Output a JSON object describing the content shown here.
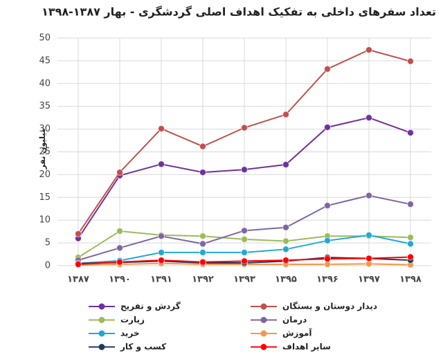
{
  "chart_data": {
    "type": "line",
    "title": "تعداد سفرهای داخلی به تفکیک اهداف اصلی گردشگری - بهار ۱۳۸۷-۱۳۹۸",
    "y_label": "میلیون نفر",
    "categories": [
      "۱۳۸۷",
      "۱۳۹۰",
      "۱۳۹۱",
      "۱۳۹۲",
      "۱۳۹۳",
      "۱۳۹۵",
      "۱۳۹۶",
      "۱۳۹۷",
      "۱۳۹۸"
    ],
    "ylim": [
      0,
      50
    ],
    "yticks": [
      0,
      5,
      10,
      15,
      20,
      25,
      30,
      35,
      40,
      45,
      50
    ],
    "grid": true,
    "legend": "bottom",
    "series": [
      {
        "name": "گردش و تفریح",
        "color": "#7030a0",
        "values": [
          6,
          19.8,
          22.3,
          20.5,
          21.1,
          22.2,
          30.4,
          32.5,
          29.2
        ]
      },
      {
        "name": "دیدار دوستان و بستگان",
        "color": "#c0504d",
        "values": [
          7,
          20.5,
          30.1,
          26.2,
          30.3,
          33.2,
          43.2,
          47.4,
          44.9
        ]
      },
      {
        "name": "زیارت",
        "color": "#9bbb59",
        "values": [
          1.8,
          7.6,
          6.7,
          6.5,
          5.8,
          5.4,
          6.5,
          6.5,
          6.2
        ]
      },
      {
        "name": "درمان",
        "color": "#8064a2",
        "values": [
          1.2,
          3.9,
          6.5,
          4.8,
          7.7,
          8.4,
          13.2,
          15.4,
          13.5
        ]
      },
      {
        "name": "خرید",
        "color": "#1fa9d8",
        "values": [
          0.5,
          1.1,
          2.9,
          2.9,
          2.9,
          3.6,
          5.5,
          6.7,
          4.8
        ]
      },
      {
        "name": "آموزش",
        "color": "#f79646",
        "values": [
          0.2,
          0.3,
          0.5,
          0.3,
          0.3,
          0.3,
          0.3,
          0.4,
          0.2
        ]
      },
      {
        "name": "کسب و کار",
        "color": "#1f3864",
        "values": [
          0.5,
          0.7,
          1.0,
          0.6,
          0.6,
          1.0,
          1.8,
          1.6,
          1.2
        ]
      },
      {
        "name": "سایر اهداف",
        "color": "#ff0000",
        "values": [
          0.3,
          0.8,
          1.2,
          0.8,
          1.0,
          1.2,
          1.5,
          1.6,
          1.9
        ]
      }
    ]
  }
}
